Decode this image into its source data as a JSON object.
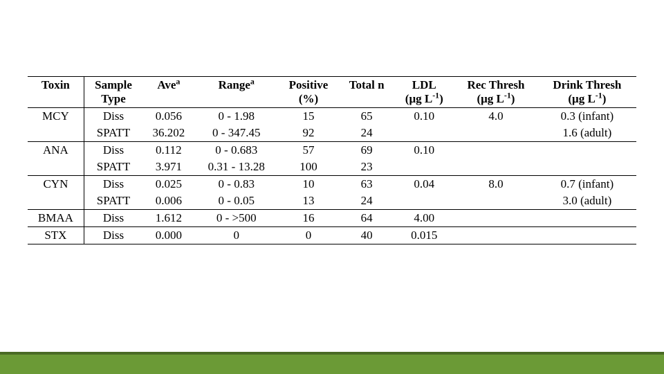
{
  "table": {
    "background_color": "#ffffff",
    "border_color": "#000000",
    "font_family": "Times New Roman",
    "font_size_pt": 13,
    "header": {
      "toxin": "Toxin",
      "sample_type_l1": "Sample",
      "sample_type_l2": "Type",
      "ave": "Ave",
      "ave_sup": "a",
      "range": "Range",
      "range_sup": "a",
      "positive_l1": "Positive",
      "positive_l2": "(%)",
      "total_n": "Total n",
      "ldl_l1": "LDL",
      "unit_plain": "(μg L",
      "unit_sup": "-1",
      "unit_close": ")",
      "rec_l1": "Rec Thresh",
      "drink_l1": "Drink Thresh"
    },
    "rows": [
      {
        "toxin": "MCY",
        "type": "Diss",
        "ave": "0.056",
        "range": "0 - 1.98",
        "pos": "15",
        "n": "65",
        "ldl": "0.10",
        "rec": "4.0",
        "drink": "0.3 (infant)"
      },
      {
        "toxin": "",
        "type": "SPATT",
        "ave": "36.202",
        "range": "0 - 347.45",
        "pos": "92",
        "n": "24",
        "ldl": "",
        "rec": "",
        "drink": "1.6 (adult)"
      },
      {
        "toxin": "ANA",
        "type": "Diss",
        "ave": "0.112",
        "range": "0 - 0.683",
        "pos": "57",
        "n": "69",
        "ldl": "0.10",
        "rec": "",
        "drink": ""
      },
      {
        "toxin": "",
        "type": "SPATT",
        "ave": "3.971",
        "range": "0.31 - 13.28",
        "pos": "100",
        "n": "23",
        "ldl": "",
        "rec": "",
        "drink": ""
      },
      {
        "toxin": "CYN",
        "type": "Diss",
        "ave": "0.025",
        "range": "0 - 0.83",
        "pos": "10",
        "n": "63",
        "ldl": "0.04",
        "rec": "8.0",
        "drink": "0.7 (infant)"
      },
      {
        "toxin": "",
        "type": "SPATT",
        "ave": "0.006",
        "range": "0 - 0.05",
        "pos": "13",
        "n": "24",
        "ldl": "",
        "rec": "",
        "drink": "3.0 (adult)"
      },
      {
        "toxin": "BMAA",
        "type": "Diss",
        "ave": "1.612",
        "range": "0 - >500",
        "pos": "16",
        "n": "64",
        "ldl": "4.00",
        "rec": "",
        "drink": ""
      },
      {
        "toxin": "STX",
        "type": "Diss",
        "ave": "0.000",
        "range": "0",
        "pos": "0",
        "n": "40",
        "ldl": "0.015",
        "rec": "",
        "drink": ""
      }
    ],
    "row_groups_underline_after_indices": [
      1,
      3,
      5,
      6,
      7
    ]
  },
  "footer": {
    "bar_color": "#6b9a36",
    "bar_border_top_color": "#4a6a24"
  }
}
